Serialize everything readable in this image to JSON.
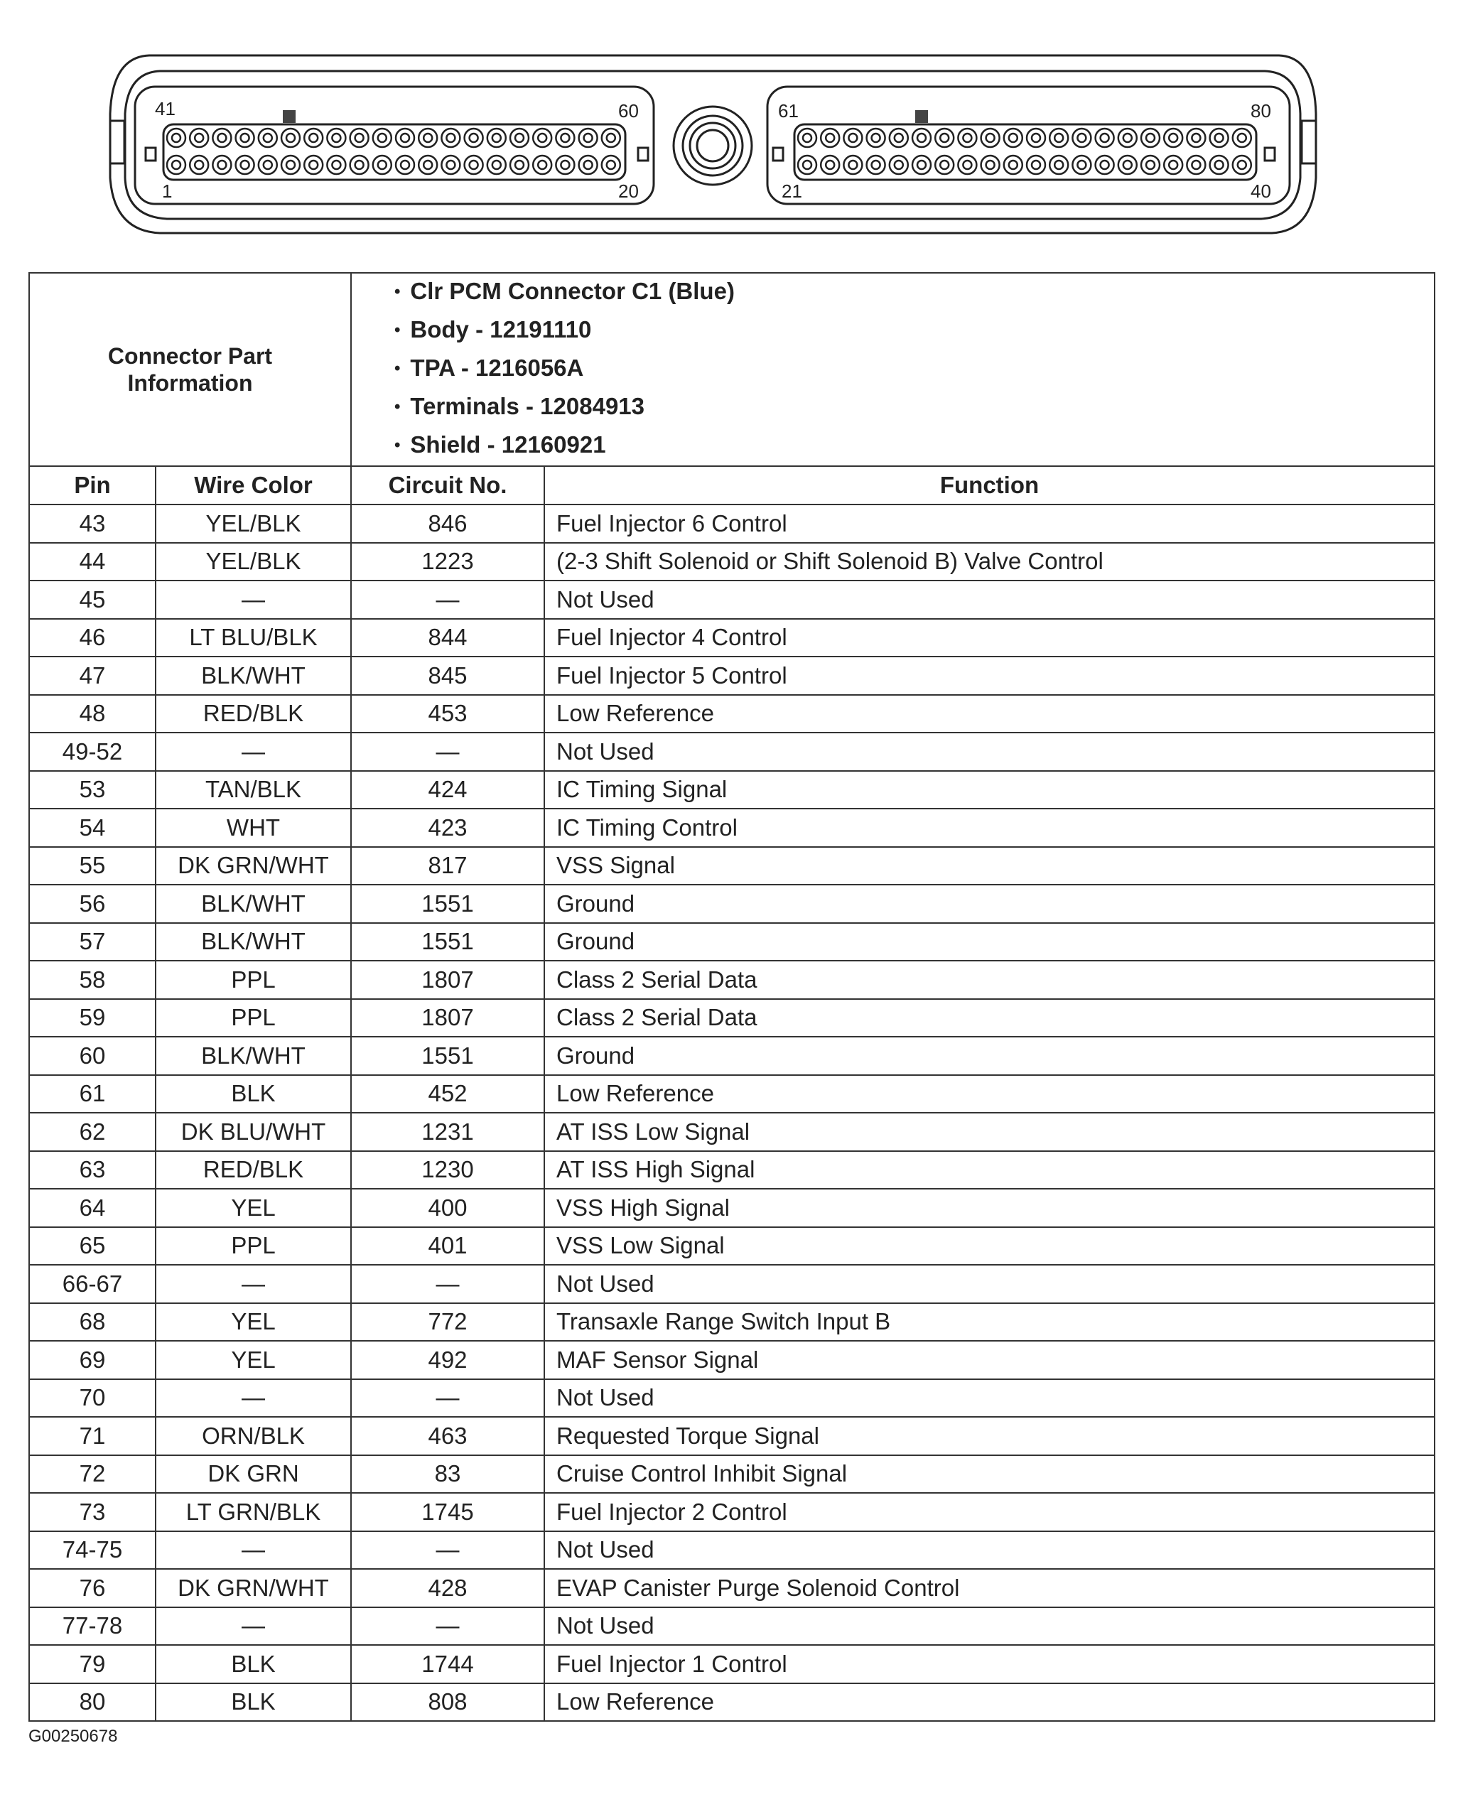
{
  "connector": {
    "pin_labels": {
      "left_top_first": "41",
      "left_top_last": "60",
      "left_bottom_first": "1",
      "left_bottom_last": "20",
      "right_top_first": "61",
      "right_top_last": "80",
      "right_bottom_first": "21",
      "right_bottom_last": "40"
    }
  },
  "part_info": {
    "label": "Connector Part Information",
    "items": [
      "Clr PCM Connector C1 (Blue)",
      "Body - 12191110",
      "TPA - 1216056A",
      "Terminals - 12084913",
      "Shield - 12160921"
    ]
  },
  "columns": [
    "Pin",
    "Wire Color",
    "Circuit No.",
    "Function"
  ],
  "rows": [
    [
      "43",
      "YEL/BLK",
      "846",
      "Fuel Injector 6 Control"
    ],
    [
      "44",
      "YEL/BLK",
      "1223",
      "(2-3 Shift Solenoid or Shift Solenoid B) Valve Control"
    ],
    [
      "45",
      "—",
      "—",
      "Not Used"
    ],
    [
      "46",
      "LT BLU/BLK",
      "844",
      "Fuel Injector 4 Control"
    ],
    [
      "47",
      "BLK/WHT",
      "845",
      "Fuel Injector 5 Control"
    ],
    [
      "48",
      "RED/BLK",
      "453",
      "Low Reference"
    ],
    [
      "49-52",
      "—",
      "—",
      "Not Used"
    ],
    [
      "53",
      "TAN/BLK",
      "424",
      "IC Timing Signal"
    ],
    [
      "54",
      "WHT",
      "423",
      "IC Timing Control"
    ],
    [
      "55",
      "DK GRN/WHT",
      "817",
      "VSS Signal"
    ],
    [
      "56",
      "BLK/WHT",
      "1551",
      "Ground"
    ],
    [
      "57",
      "BLK/WHT",
      "1551",
      "Ground"
    ],
    [
      "58",
      "PPL",
      "1807",
      "Class 2 Serial Data"
    ],
    [
      "59",
      "PPL",
      "1807",
      "Class 2 Serial Data"
    ],
    [
      "60",
      "BLK/WHT",
      "1551",
      "Ground"
    ],
    [
      "61",
      "BLK",
      "452",
      "Low Reference"
    ],
    [
      "62",
      "DK BLU/WHT",
      "1231",
      "AT ISS Low Signal"
    ],
    [
      "63",
      "RED/BLK",
      "1230",
      "AT ISS High Signal"
    ],
    [
      "64",
      "YEL",
      "400",
      "VSS High Signal"
    ],
    [
      "65",
      "PPL",
      "401",
      "VSS Low Signal"
    ],
    [
      "66-67",
      "—",
      "—",
      "Not Used"
    ],
    [
      "68",
      "YEL",
      "772",
      "Transaxle Range Switch Input B"
    ],
    [
      "69",
      "YEL",
      "492",
      "MAF Sensor Signal"
    ],
    [
      "70",
      "—",
      "—",
      "Not Used"
    ],
    [
      "71",
      "ORN/BLK",
      "463",
      "Requested Torque Signal"
    ],
    [
      "72",
      "DK GRN",
      "83",
      "Cruise Control Inhibit Signal"
    ],
    [
      "73",
      "LT GRN/BLK",
      "1745",
      "Fuel Injector 2 Control"
    ],
    [
      "74-75",
      "—",
      "—",
      "Not Used"
    ],
    [
      "76",
      "DK GRN/WHT",
      "428",
      "EVAP Canister Purge Solenoid Control"
    ],
    [
      "77-78",
      "—",
      "—",
      "Not Used"
    ],
    [
      "79",
      "BLK",
      "1744",
      "Fuel Injector 1 Control"
    ],
    [
      "80",
      "BLK",
      "808",
      "Low Reference"
    ]
  ],
  "footer": "G00250678"
}
